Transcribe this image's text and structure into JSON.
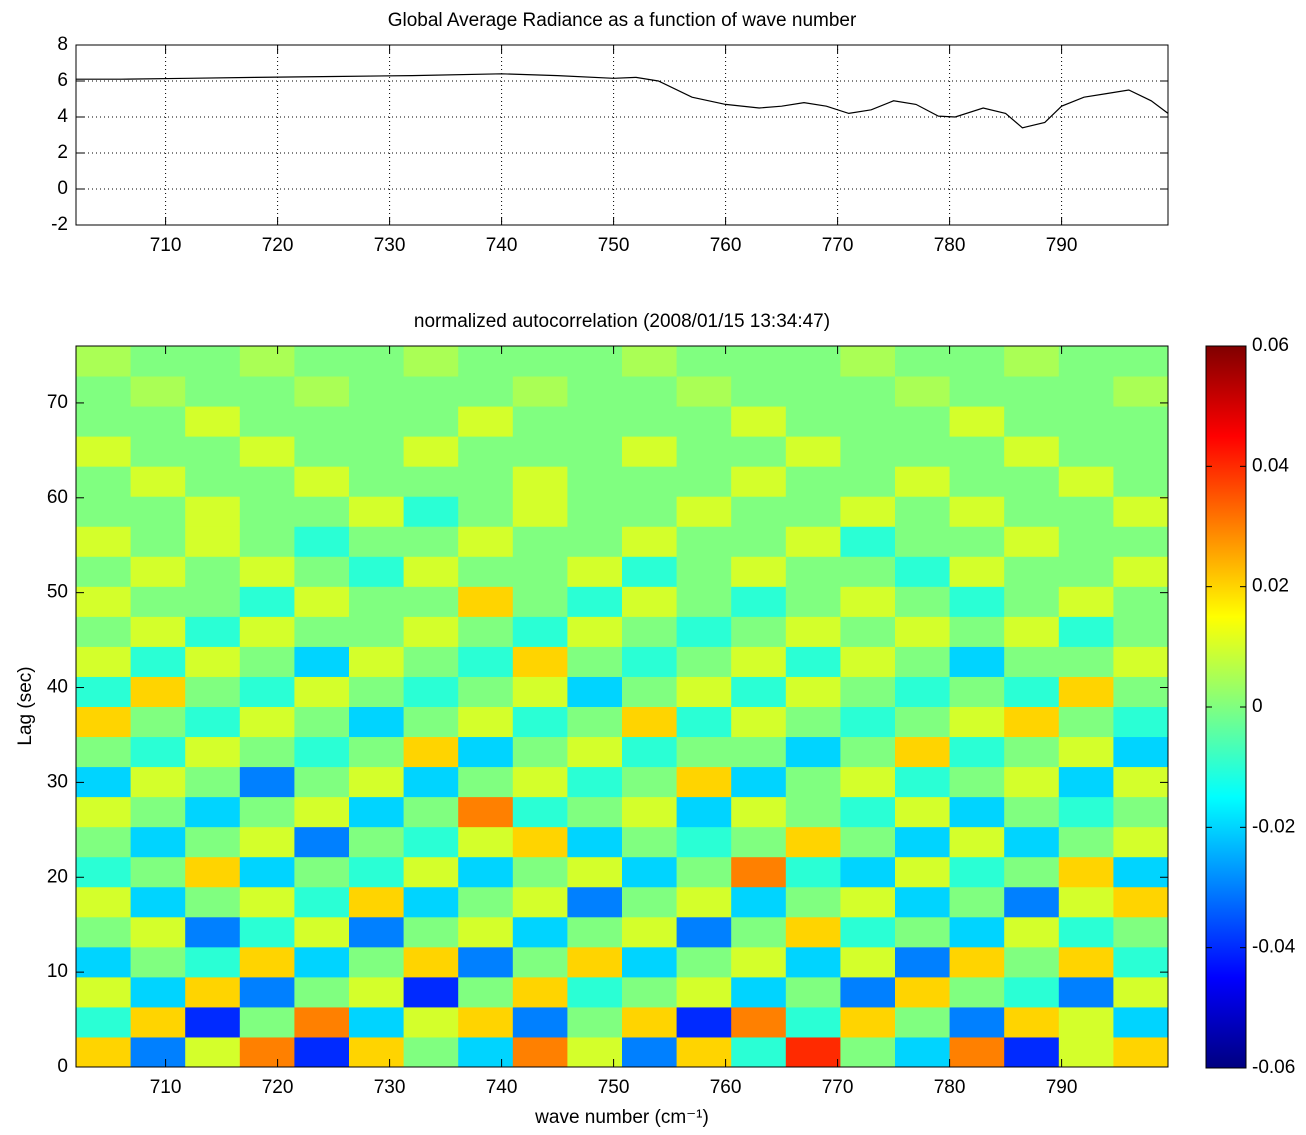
{
  "chart_data": [
    {
      "type": "line",
      "title": "Global Average Radiance as a function of wave number",
      "x": [
        702,
        706,
        712,
        718,
        725,
        732,
        740,
        745,
        750,
        752,
        754,
        757,
        760,
        763,
        765,
        767,
        769,
        771,
        773,
        775,
        777,
        779,
        780.5,
        783,
        785,
        786.5,
        788.5,
        790,
        792,
        794,
        796,
        798,
        799.5
      ],
      "series": [
        {
          "name": "radiance",
          "color": "#000000",
          "values": [
            6.1,
            6.1,
            6.15,
            6.2,
            6.25,
            6.3,
            6.4,
            6.3,
            6.15,
            6.2,
            6.0,
            5.1,
            4.7,
            4.5,
            4.6,
            4.8,
            4.6,
            4.2,
            4.4,
            4.9,
            4.7,
            4.05,
            4.0,
            4.5,
            4.2,
            3.4,
            3.7,
            4.6,
            5.1,
            5.3,
            5.5,
            4.9,
            4.2
          ]
        }
      ],
      "xlim": [
        702,
        799.5
      ],
      "ylim": [
        -2,
        8
      ],
      "xticks": [
        710,
        720,
        730,
        740,
        750,
        760,
        770,
        780,
        790
      ],
      "yticks": [
        -2,
        0,
        2,
        4,
        6,
        8
      ],
      "grid": true
    },
    {
      "type": "heatmap",
      "title": "normalized autocorrelation (2008/01/15 13:34:47)",
      "x_label": "wave number (cm⁻¹)",
      "y_label": "Lag (sec)",
      "xlim": [
        702,
        799.5
      ],
      "ylim": [
        0,
        76
      ],
      "xticks": [
        710,
        720,
        730,
        740,
        750,
        760,
        770,
        780,
        790
      ],
      "yticks": [
        0,
        10,
        20,
        30,
        40,
        50,
        60,
        70
      ],
      "zlim": [
        -0.06,
        0.06
      ],
      "zticks": [
        0.06,
        0.04,
        0.02,
        0,
        -0.02,
        -0.04,
        -0.06
      ],
      "colormap": "jet",
      "values": [
        [
          0.02,
          -0.03,
          0.01,
          0.03,
          -0.04,
          0.02,
          0.0,
          -0.02,
          0.03,
          0.01,
          -0.03,
          0.02,
          -0.01,
          0.04,
          0.0,
          -0.02,
          0.03,
          -0.04,
          0.01,
          0.02
        ],
        [
          -0.01,
          0.02,
          -0.04,
          0.0,
          0.03,
          -0.02,
          0.01,
          0.02,
          -0.03,
          0.0,
          0.02,
          -0.04,
          0.03,
          -0.01,
          0.02,
          0.0,
          -0.03,
          0.02,
          0.01,
          -0.02
        ],
        [
          0.01,
          -0.02,
          0.02,
          -0.03,
          0.0,
          0.01,
          -0.04,
          0.0,
          0.02,
          -0.01,
          0.0,
          0.01,
          -0.02,
          0.0,
          -0.03,
          0.02,
          0.0,
          -0.01,
          -0.03,
          0.01
        ],
        [
          -0.02,
          0.0,
          -0.01,
          0.02,
          -0.02,
          0.0,
          0.02,
          -0.03,
          0.0,
          0.02,
          -0.02,
          0.0,
          0.01,
          -0.02,
          0.01,
          -0.03,
          0.02,
          0.0,
          0.02,
          -0.01
        ],
        [
          0.0,
          0.01,
          -0.03,
          -0.01,
          0.01,
          -0.03,
          0.0,
          0.01,
          -0.02,
          0.0,
          0.01,
          -0.03,
          0.0,
          0.02,
          -0.01,
          0.0,
          -0.02,
          0.01,
          -0.01,
          0.0
        ],
        [
          0.01,
          -0.02,
          0.0,
          0.01,
          -0.01,
          0.02,
          -0.02,
          0.0,
          0.01,
          -0.03,
          0.0,
          0.01,
          -0.02,
          0.0,
          0.01,
          -0.02,
          0.0,
          -0.03,
          0.01,
          0.02
        ],
        [
          -0.01,
          0.0,
          0.02,
          -0.02,
          0.0,
          -0.01,
          0.01,
          -0.02,
          0.0,
          0.01,
          -0.02,
          0.0,
          0.03,
          -0.01,
          -0.02,
          0.01,
          -0.01,
          0.0,
          0.02,
          -0.02
        ],
        [
          0.0,
          -0.02,
          0.0,
          0.01,
          -0.03,
          0.0,
          -0.01,
          0.01,
          0.02,
          -0.02,
          0.0,
          -0.01,
          0.0,
          0.02,
          0.0,
          -0.02,
          0.01,
          -0.02,
          0.0,
          0.01
        ],
        [
          0.01,
          0.0,
          -0.02,
          0.0,
          0.01,
          -0.02,
          0.0,
          0.03,
          -0.01,
          0.0,
          0.01,
          -0.02,
          0.01,
          0.0,
          -0.01,
          0.01,
          -0.02,
          0.0,
          -0.01,
          0.0
        ],
        [
          -0.02,
          0.01,
          0.0,
          -0.03,
          0.0,
          0.01,
          -0.02,
          0.0,
          0.01,
          -0.01,
          0.0,
          0.02,
          -0.02,
          0.0,
          0.01,
          -0.01,
          0.0,
          0.01,
          -0.02,
          0.01
        ],
        [
          0.0,
          -0.01,
          0.01,
          0.0,
          -0.01,
          0.0,
          0.02,
          -0.02,
          0.0,
          0.01,
          -0.01,
          0.0,
          0.0,
          -0.02,
          0.0,
          0.02,
          -0.01,
          0.0,
          0.01,
          -0.02
        ],
        [
          0.02,
          0.0,
          -0.01,
          0.01,
          0.0,
          -0.02,
          0.0,
          0.01,
          -0.01,
          0.0,
          0.02,
          -0.01,
          0.01,
          0.0,
          -0.01,
          0.0,
          0.01,
          0.02,
          0.0,
          -0.01
        ],
        [
          -0.01,
          0.02,
          0.0,
          -0.01,
          0.01,
          0.0,
          -0.01,
          0.0,
          0.01,
          -0.02,
          0.0,
          0.01,
          -0.01,
          0.01,
          0.0,
          -0.01,
          0.0,
          -0.01,
          0.02,
          0.0
        ],
        [
          0.01,
          -0.01,
          0.01,
          0.0,
          -0.02,
          0.01,
          0.0,
          -0.01,
          0.02,
          0.0,
          -0.01,
          0.0,
          0.01,
          -0.01,
          0.01,
          0.0,
          -0.02,
          0.0,
          0.0,
          0.01
        ],
        [
          0.0,
          0.01,
          -0.01,
          0.01,
          0.0,
          0.0,
          0.01,
          0.0,
          -0.01,
          0.01,
          0.0,
          -0.01,
          0.0,
          0.01,
          0.0,
          0.01,
          0.0,
          0.01,
          -0.01,
          0.0
        ],
        [
          0.01,
          0.0,
          0.0,
          -0.01,
          0.01,
          0.0,
          0.0,
          0.02,
          0.0,
          -0.01,
          0.01,
          0.0,
          -0.01,
          0.0,
          0.01,
          0.0,
          -0.01,
          0.0,
          0.01,
          0.0
        ],
        [
          0.0,
          0.01,
          0.0,
          0.01,
          0.0,
          -0.01,
          0.01,
          0.0,
          0.0,
          0.01,
          -0.01,
          0.0,
          0.01,
          0.0,
          0.0,
          -0.01,
          0.01,
          0.0,
          0.0,
          0.01
        ],
        [
          0.01,
          0.0,
          0.01,
          0.0,
          -0.01,
          0.0,
          0.0,
          0.01,
          0.0,
          0.0,
          0.01,
          0.0,
          0.0,
          0.01,
          -0.01,
          0.0,
          0.0,
          0.01,
          0.0,
          0.0
        ],
        [
          0.0,
          0.0,
          0.01,
          0.0,
          0.0,
          0.01,
          -0.01,
          0.0,
          0.01,
          0.0,
          0.0,
          0.01,
          0.0,
          0.0,
          0.01,
          0.0,
          0.01,
          0.0,
          0.0,
          0.01
        ],
        [
          0.0,
          0.01,
          0.0,
          0.0,
          0.01,
          0.0,
          0.0,
          0.0,
          0.01,
          0.0,
          0.0,
          0.0,
          0.01,
          0.0,
          0.0,
          0.01,
          0.0,
          0.0,
          0.01,
          0.0
        ],
        [
          0.01,
          0.0,
          0.0,
          0.01,
          0.0,
          0.0,
          0.01,
          0.0,
          0.0,
          0.0,
          0.01,
          0.0,
          0.0,
          0.01,
          0.0,
          0.0,
          0.0,
          0.01,
          0.0,
          0.0
        ],
        [
          0.0,
          0.0,
          0.01,
          0.0,
          0.0,
          0.0,
          0.0,
          0.01,
          0.0,
          0.0,
          0.0,
          0.0,
          0.01,
          0.0,
          0.0,
          0.0,
          0.01,
          0.0,
          0.0,
          0.0
        ],
        [
          0.0,
          0.005,
          0.0,
          0.0,
          0.005,
          0.0,
          0.0,
          0.0,
          0.005,
          0.0,
          0.0,
          0.005,
          0.0,
          0.0,
          0.0,
          0.005,
          0.0,
          0.0,
          0.0,
          0.005
        ],
        [
          0.005,
          0.0,
          0.0,
          0.005,
          0.0,
          0.0,
          0.005,
          0.0,
          0.0,
          0.0,
          0.005,
          0.0,
          0.0,
          0.0,
          0.005,
          0.0,
          0.0,
          0.005,
          0.0,
          0.0
        ]
      ]
    }
  ]
}
